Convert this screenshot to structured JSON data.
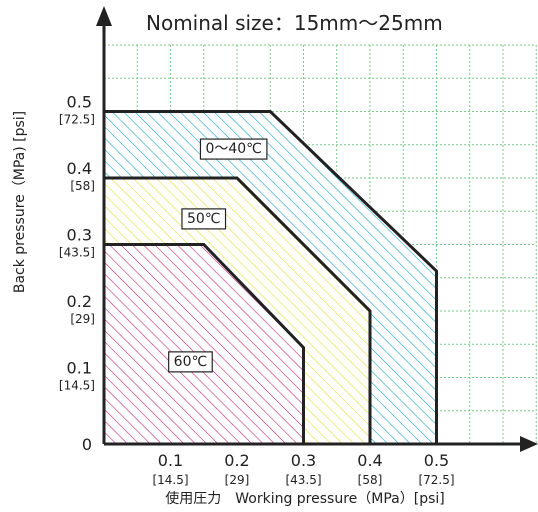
{
  "chart_data": {
    "type": "area",
    "title": "Nominal size：15mm～25mm",
    "xlabel": "使用圧力　Working pressure（MPa）[psi]",
    "ylabel": "Back pressure（MPa) [psi]",
    "xlim": [
      0,
      0.65
    ],
    "ylim": [
      0,
      0.6
    ],
    "grid": true,
    "x_ticks": [
      {
        "value": 0.1,
        "label": "0.1",
        "sub": "[14.5]"
      },
      {
        "value": 0.2,
        "label": "0.2",
        "sub": "[29]"
      },
      {
        "value": 0.3,
        "label": "0.3",
        "sub": "[43.5]"
      },
      {
        "value": 0.4,
        "label": "0.4",
        "sub": "[58]"
      },
      {
        "value": 0.5,
        "label": "0.5",
        "sub": "[72.5]"
      }
    ],
    "y_ticks": [
      {
        "value": 0,
        "label": "0",
        "sub": ""
      },
      {
        "value": 0.1,
        "label": "0.1",
        "sub": "[14.5]"
      },
      {
        "value": 0.2,
        "label": "0.2",
        "sub": "[29]"
      },
      {
        "value": 0.3,
        "label": "0.3",
        "sub": "[43.5]"
      },
      {
        "value": 0.4,
        "label": "0.4",
        "sub": "[58]"
      },
      {
        "value": 0.5,
        "label": "0.5",
        "sub": "[72.5]"
      }
    ],
    "series": [
      {
        "name": "0～40℃",
        "color": "#1aa6c9",
        "label_at": [
          0.195,
          0.445
        ],
        "points": [
          [
            0,
            0
          ],
          [
            0,
            0.5
          ],
          [
            0.25,
            0.5
          ],
          [
            0.5,
            0.26
          ],
          [
            0.5,
            0
          ]
        ]
      },
      {
        "name": "50℃",
        "color": "#e6df3c",
        "label_at": [
          0.15,
          0.34
        ],
        "points": [
          [
            0,
            0
          ],
          [
            0,
            0.4
          ],
          [
            0.2,
            0.4
          ],
          [
            0.4,
            0.2
          ],
          [
            0.4,
            0
          ]
        ]
      },
      {
        "name": "60℃",
        "color": "#c42a78",
        "label_at": [
          0.13,
          0.125
        ],
        "points": [
          [
            0,
            0
          ],
          [
            0,
            0.3
          ],
          [
            0.15,
            0.3
          ],
          [
            0.3,
            0.145
          ],
          [
            0.3,
            0
          ]
        ]
      }
    ]
  }
}
